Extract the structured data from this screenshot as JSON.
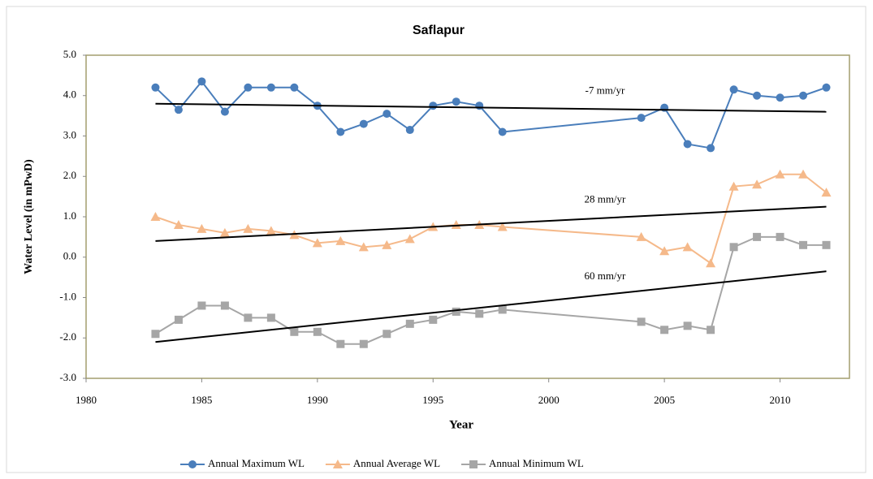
{
  "chart_data": {
    "type": "line",
    "title": "Saflapur",
    "x_label": "Year",
    "y_label": "Water Level (in mPwD)",
    "x": [
      1983,
      1984,
      1985,
      1986,
      1987,
      1988,
      1989,
      1990,
      1991,
      1992,
      1993,
      1994,
      1995,
      1996,
      1997,
      1998,
      2004,
      2005,
      2006,
      2007,
      2008,
      2009,
      2010,
      2011,
      2012
    ],
    "series": [
      {
        "name": "Annual Maximum WL",
        "color": "#4a7ebb",
        "marker": "circle",
        "values": [
          4.2,
          3.65,
          4.35,
          3.6,
          4.2,
          4.2,
          4.2,
          3.75,
          3.1,
          3.3,
          3.55,
          3.15,
          3.75,
          3.85,
          3.75,
          3.1,
          3.45,
          3.7,
          2.8,
          2.7,
          4.15,
          4.0,
          3.95,
          4.0,
          4.2
        ]
      },
      {
        "name": "Annual Average WL",
        "color": "#f5b98a",
        "marker": "triangle",
        "values": [
          1.0,
          0.8,
          0.7,
          0.6,
          0.7,
          0.65,
          0.55,
          0.35,
          0.4,
          0.25,
          0.3,
          0.45,
          0.75,
          0.8,
          0.8,
          0.75,
          0.5,
          0.15,
          0.25,
          -0.15,
          1.75,
          1.8,
          2.05,
          2.05,
          1.6
        ]
      },
      {
        "name": "Annual Minimum  WL",
        "color": "#a6a6a6",
        "marker": "square",
        "values": [
          -1.9,
          -1.55,
          -1.2,
          -1.2,
          -1.5,
          -1.5,
          -1.85,
          -1.85,
          -2.15,
          -2.15,
          -1.9,
          -1.65,
          -1.55,
          -1.35,
          -1.4,
          -1.3,
          -1.6,
          -1.8,
          -1.7,
          -1.8,
          0.25,
          0.5,
          0.5,
          0.3,
          0.3
        ]
      }
    ],
    "trendlines": [
      {
        "label": "-7 mm/yr",
        "x": [
          1983,
          2012
        ],
        "values": [
          3.8,
          3.6
        ]
      },
      {
        "label": "28 mm/yr",
        "x": [
          1983,
          2012
        ],
        "values": [
          0.4,
          1.25
        ]
      },
      {
        "label": "60 mm/yr",
        "x": [
          1983,
          2012
        ],
        "values": [
          -2.1,
          -0.35
        ]
      }
    ],
    "xlim": [
      1980,
      2013
    ],
    "xticks": [
      1980,
      1985,
      1990,
      1995,
      2000,
      2005,
      2010
    ],
    "ylim": [
      -3,
      5
    ],
    "yticks": [
      {
        "value": -3,
        "label": "-3.0"
      },
      {
        "value": -2,
        "label": "-2.0"
      },
      {
        "value": -1,
        "label": "-1.0"
      },
      {
        "value": 0,
        "label": "0.0"
      },
      {
        "value": 1,
        "label": "1.0"
      },
      {
        "value": 2,
        "label": "2.0"
      },
      {
        "value": 3,
        "label": "3.0"
      },
      {
        "value": 4,
        "label": "4.0"
      },
      {
        "value": 5,
        "label": "5.0"
      }
    ],
    "legend": "bottom"
  }
}
